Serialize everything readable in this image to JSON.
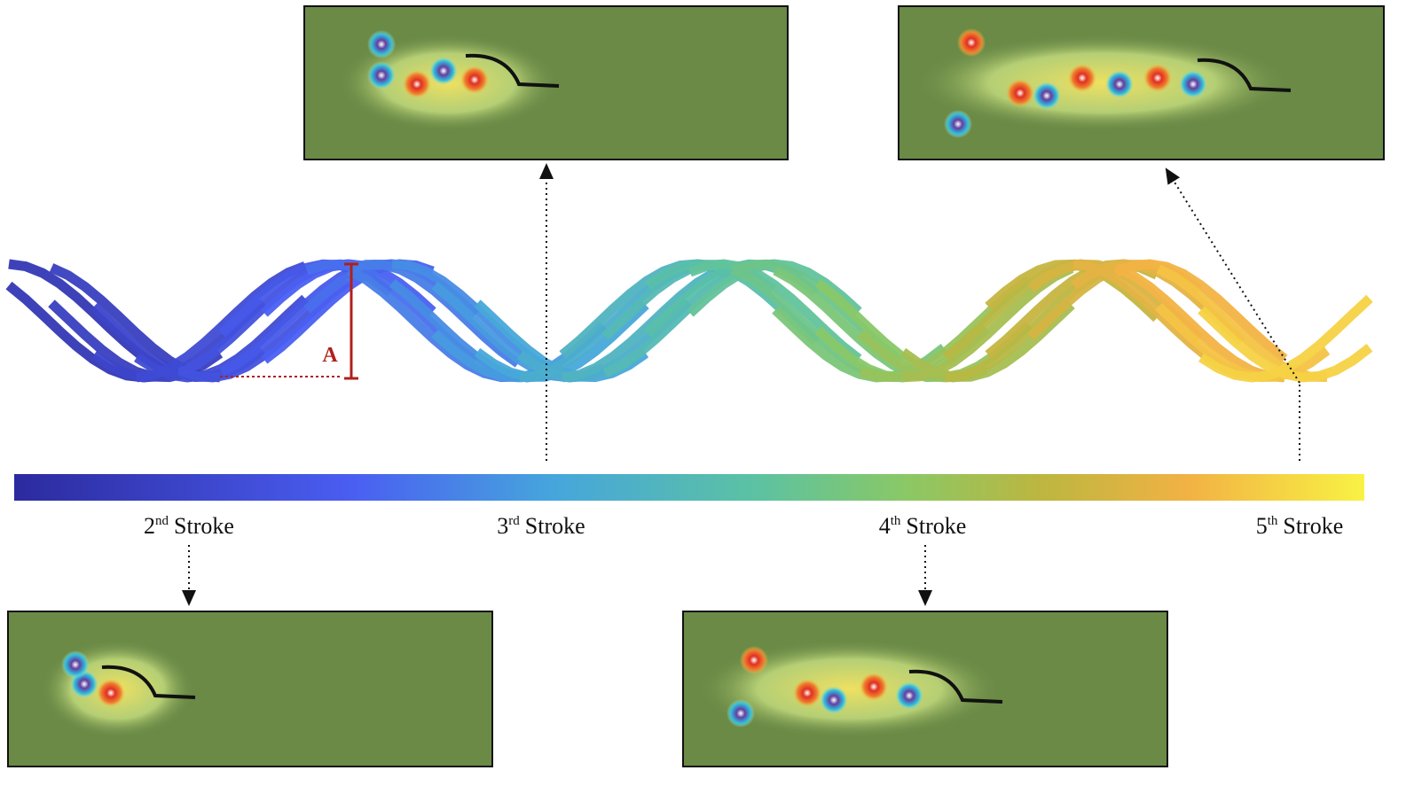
{
  "amplitude_label": "A",
  "strokes": [
    {
      "number": "2",
      "suffix": "nd",
      "word": "Stroke"
    },
    {
      "number": "3",
      "suffix": "rd",
      "word": "Stroke"
    },
    {
      "number": "4",
      "suffix": "th",
      "word": "Stroke"
    },
    {
      "number": "5",
      "suffix": "th",
      "word": "Stroke"
    }
  ]
}
